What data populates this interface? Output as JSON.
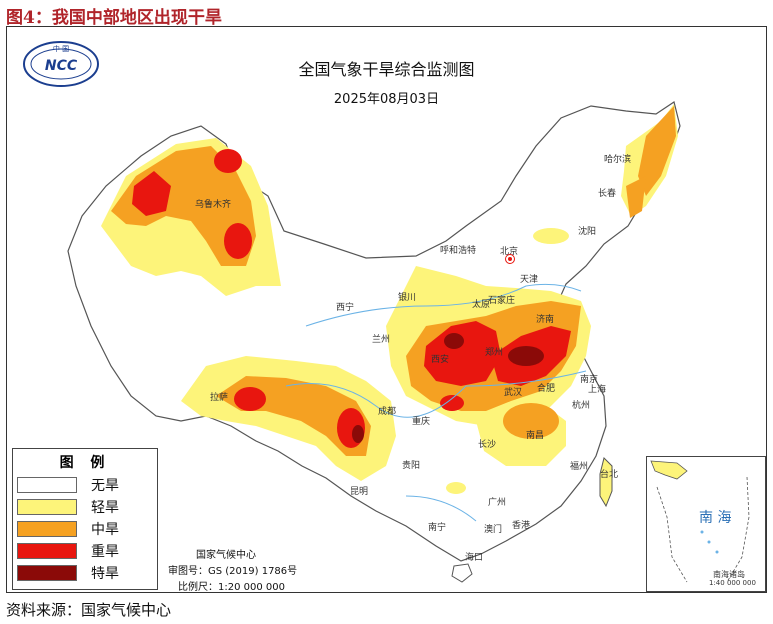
{
  "figure": {
    "title": "图4：我国中部地区出现干旱",
    "source": "资料来源：国家气候中心"
  },
  "map": {
    "title": "全国气象干旱综合监测图",
    "date": "2025年08月03日",
    "logo_text": "NCC",
    "logo_top": "中 国",
    "producer": "国家气候中心",
    "review_no": "审图号：GS (2019) 1786号",
    "scale": "比例尺：1:20 000 000",
    "inset_title": "南 海",
    "inset_label": "南海诸岛",
    "inset_scale": "1:40 000 000"
  },
  "legend": {
    "title": "图 例",
    "items": [
      {
        "label": "无旱",
        "color": "#ffffff"
      },
      {
        "label": "轻旱",
        "color": "#fdf47a"
      },
      {
        "label": "中旱",
        "color": "#f5a122"
      },
      {
        "label": "重旱",
        "color": "#e8160f"
      },
      {
        "label": "特旱",
        "color": "#8b0a08"
      }
    ]
  },
  "cities": [
    {
      "name": "哈尔滨"
    },
    {
      "name": "长春"
    },
    {
      "name": "沈阳"
    },
    {
      "name": "乌鲁木齐"
    },
    {
      "name": "呼和浩特"
    },
    {
      "name": "北京"
    },
    {
      "name": "天津"
    },
    {
      "name": "石家庄"
    },
    {
      "name": "太原"
    },
    {
      "name": "银川"
    },
    {
      "name": "西宁"
    },
    {
      "name": "兰州"
    },
    {
      "name": "济南"
    },
    {
      "name": "郑州"
    },
    {
      "name": "西安"
    },
    {
      "name": "南京"
    },
    {
      "name": "合肥"
    },
    {
      "name": "上海"
    },
    {
      "name": "武汉"
    },
    {
      "name": "杭州"
    },
    {
      "name": "成都"
    },
    {
      "name": "重庆"
    },
    {
      "name": "拉萨"
    },
    {
      "name": "长沙"
    },
    {
      "name": "南昌"
    },
    {
      "name": "福州"
    },
    {
      "name": "台北"
    },
    {
      "name": "贵阳"
    },
    {
      "name": "昆明"
    },
    {
      "name": "广州"
    },
    {
      "name": "南宁"
    },
    {
      "name": "澳门"
    },
    {
      "name": "香港"
    },
    {
      "name": "海口"
    }
  ]
}
